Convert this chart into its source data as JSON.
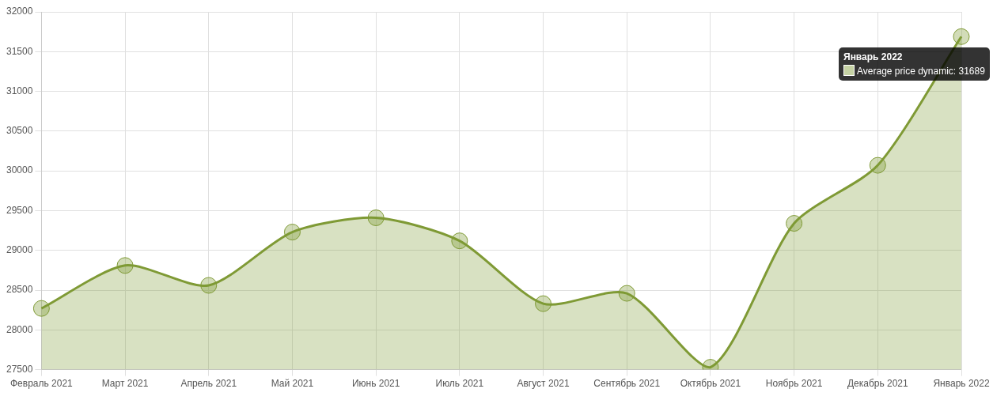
{
  "chart_data": {
    "type": "area",
    "categories": [
      "Февраль 2021",
      "Март 2021",
      "Апрель 2021",
      "Май 2021",
      "Июнь 2021",
      "Июль 2021",
      "Август 2021",
      "Сентябрь 2021",
      "Октябрь 2021",
      "Ноябрь 2021",
      "Декабрь 2021",
      "Январь 2022"
    ],
    "series": [
      {
        "color": "#7f9a35",
        "values": [
          28270,
          28810,
          28560,
          29230,
          29410,
          29120,
          28330,
          28460,
          27530,
          29340,
          30070,
          31689
        ]
      }
    ],
    "annotations": [
      "Январь 2022",
      "Average price dynamic: 31689"
    ],
    "ylim": [
      27500,
      32000
    ],
    "yticks": [
      27500,
      28000,
      28500,
      29000,
      29500,
      30000,
      30500,
      31000,
      31500,
      32000
    ],
    "grid": true,
    "marker": "circle"
  }
}
